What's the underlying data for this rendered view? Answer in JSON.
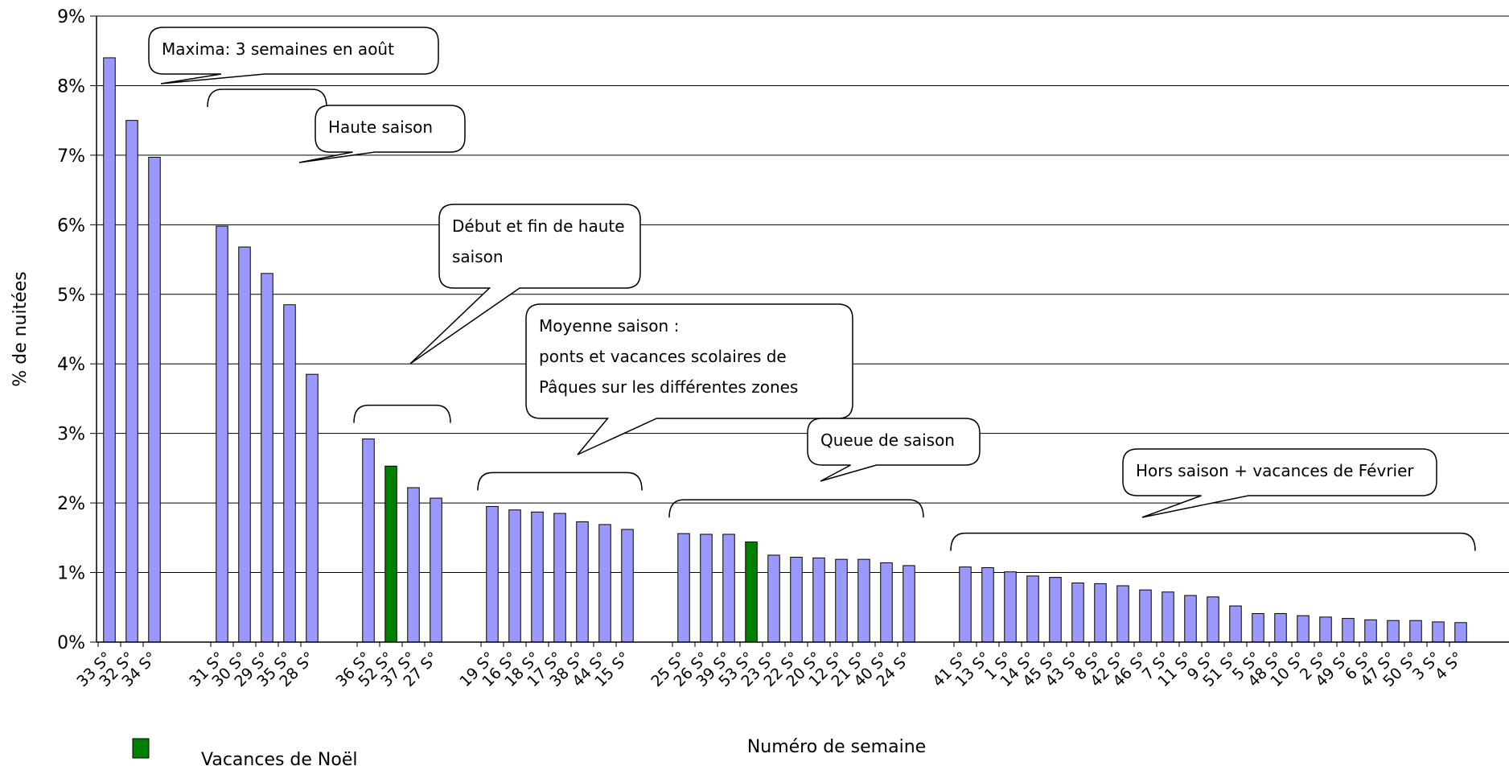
{
  "chart_data": {
    "type": "bar",
    "ylabel": "% de nuitées",
    "xlabel": "Numéro de semaine",
    "ylim": [
      0,
      9
    ],
    "yticks": [
      "0%",
      "1%",
      "2%",
      "3%",
      "4%",
      "5%",
      "6%",
      "7%",
      "8%",
      "9%"
    ],
    "grid": true,
    "colors": {
      "default": "#9999ff",
      "highlight": "#008000"
    },
    "groups": [
      {
        "categories": [
          "33 S°",
          "32 S°",
          "34 S°"
        ],
        "values": [
          8.4,
          7.5,
          6.97
        ],
        "highlight": [
          false,
          false,
          false
        ]
      },
      {
        "categories": [
          "31 S°",
          "30 S°",
          "29 S°",
          "35 S°",
          "28 S°"
        ],
        "values": [
          5.98,
          5.68,
          5.3,
          4.85,
          3.85
        ],
        "highlight": [
          false,
          false,
          false,
          false,
          false
        ]
      },
      {
        "categories": [
          "36 S°",
          "52 S°",
          "37 S°",
          "27 S°"
        ],
        "values": [
          2.92,
          2.53,
          2.22,
          2.07
        ],
        "highlight": [
          false,
          true,
          false,
          false
        ]
      },
      {
        "categories": [
          "19 S°",
          "16 S°",
          "18 S°",
          "17 S°",
          "38 S°",
          "44 S°",
          "15 S°"
        ],
        "values": [
          1.95,
          1.9,
          1.87,
          1.85,
          1.73,
          1.69,
          1.62
        ],
        "highlight": [
          false,
          false,
          false,
          false,
          false,
          false,
          false
        ]
      },
      {
        "categories": [
          "25 S°",
          "26 S°",
          "39 S°",
          "53 S°",
          "23 S°",
          "22 S°",
          "20 S°",
          "12 S°",
          "21 S°",
          "40 S°",
          "24 S°"
        ],
        "values": [
          1.56,
          1.55,
          1.55,
          1.44,
          1.25,
          1.22,
          1.21,
          1.19,
          1.19,
          1.14,
          1.1
        ],
        "highlight": [
          false,
          false,
          false,
          true,
          false,
          false,
          false,
          false,
          false,
          false,
          false
        ]
      },
      {
        "categories": [
          "41 S°",
          "13 S°",
          "1 S°",
          "14 S°",
          "45 S°",
          "43 S°",
          "8 S°",
          "42 S°",
          "46 S°",
          "7 S°",
          "11 S°",
          "9 S°",
          "51 S°",
          "5 S°",
          "48 S°",
          "10 S°",
          "2 S°",
          "49 S°",
          "6 S°",
          "47 S°",
          "50 S°",
          "3 S°",
          "4 S°"
        ],
        "values": [
          1.08,
          1.07,
          1.01,
          0.95,
          0.93,
          0.85,
          0.84,
          0.81,
          0.75,
          0.72,
          0.67,
          0.65,
          0.52,
          0.41,
          0.41,
          0.38,
          0.36,
          0.34,
          0.32,
          0.31,
          0.31,
          0.29,
          0.28
        ],
        "highlight": [
          false,
          false,
          false,
          false,
          false,
          false,
          false,
          false,
          false,
          false,
          false,
          false,
          false,
          false,
          false,
          false,
          false,
          false,
          false,
          false,
          false,
          false,
          false
        ]
      }
    ],
    "legend": {
      "label": "Vacances de Noël",
      "placement": "bottom-left"
    },
    "annotations": [
      {
        "lines": [
          "Maxima: 3 semaines en août"
        ],
        "group": 0
      },
      {
        "lines": [
          "Haute saison"
        ],
        "group": 1
      },
      {
        "lines": [
          "Début et fin de haute",
          "saison"
        ],
        "group": 2
      },
      {
        "lines": [
          "Moyenne saison :",
          "ponts et vacances scolaires de",
          "Pâques sur les différentes zones"
        ],
        "group": 3
      },
      {
        "lines": [
          "Queue de saison"
        ],
        "group": 4
      },
      {
        "lines": [
          "Hors saison + vacances de Février"
        ],
        "group": 5
      }
    ]
  }
}
